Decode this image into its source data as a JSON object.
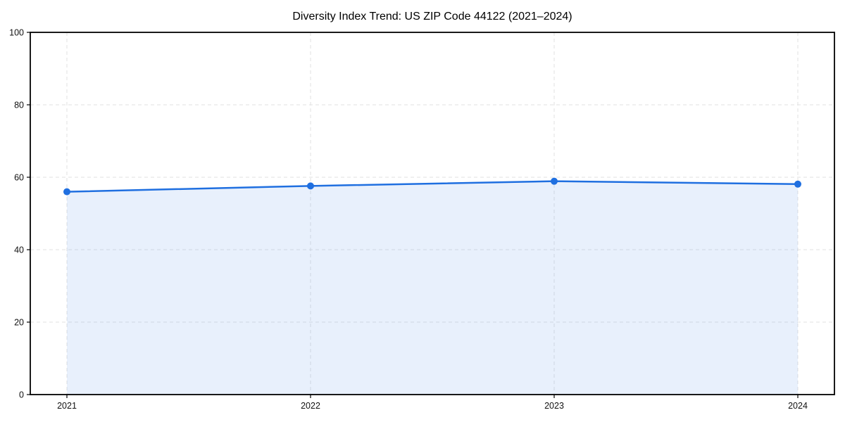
{
  "page": {
    "background": "#ffffff"
  },
  "chart_data": {
    "type": "area",
    "title": "Diversity Index Trend: US ZIP Code 44122 (2021–2024)",
    "categories": [
      "2021",
      "2022",
      "2023",
      "2024"
    ],
    "series": [
      {
        "name": "Diversity Index",
        "values": [
          56.0,
          57.6,
          58.9,
          58.1
        ]
      }
    ],
    "xlabel": "",
    "ylabel": "",
    "ylim": [
      0,
      100
    ],
    "yticks": [
      0,
      20,
      40,
      60,
      80,
      100
    ],
    "grid": true,
    "grid_style": "dashed",
    "legend": false,
    "colors": {
      "line": "#1f6fe0",
      "marker": "#1f6fe0",
      "fill": "#1f6fe0",
      "fill_opacity": 0.1,
      "grid": "#e2e2e2",
      "spine": "#000000",
      "tick": "#000000",
      "tick_label": "#111111",
      "title": "#000000",
      "background": "#ffffff"
    }
  }
}
